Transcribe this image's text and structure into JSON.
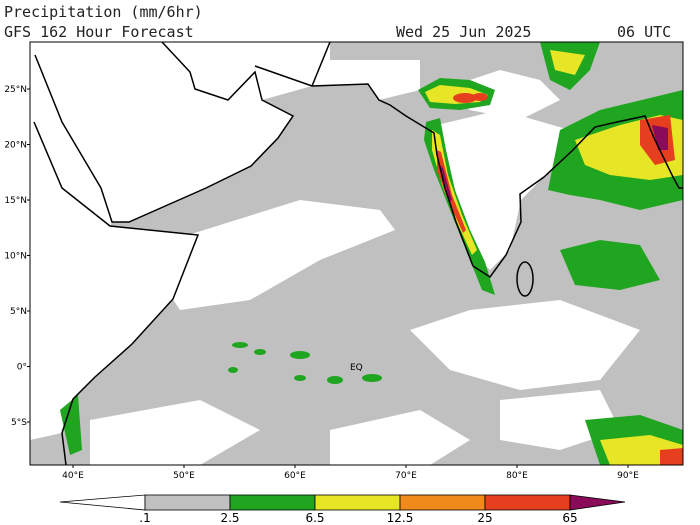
{
  "header": {
    "title": "Precipitation (mm/6hr)",
    "subtitle": "GFS 162 Hour Forecast",
    "date": "Wed 25 Jun 2025",
    "time": "06 UTC"
  },
  "map": {
    "lat_labels": [
      "25°N",
      "20°N",
      "15°N",
      "10°N",
      "5°N",
      "0°",
      "5°S"
    ],
    "lon_labels": [
      "40°E",
      "50°E",
      "60°E",
      "70°E",
      "80°E",
      "90°E"
    ],
    "equator_label": "EQ"
  },
  "colorbar": {
    "labels": [
      ".1",
      "2.5",
      "6.5",
      "12.5",
      "25",
      "65"
    ]
  }
}
